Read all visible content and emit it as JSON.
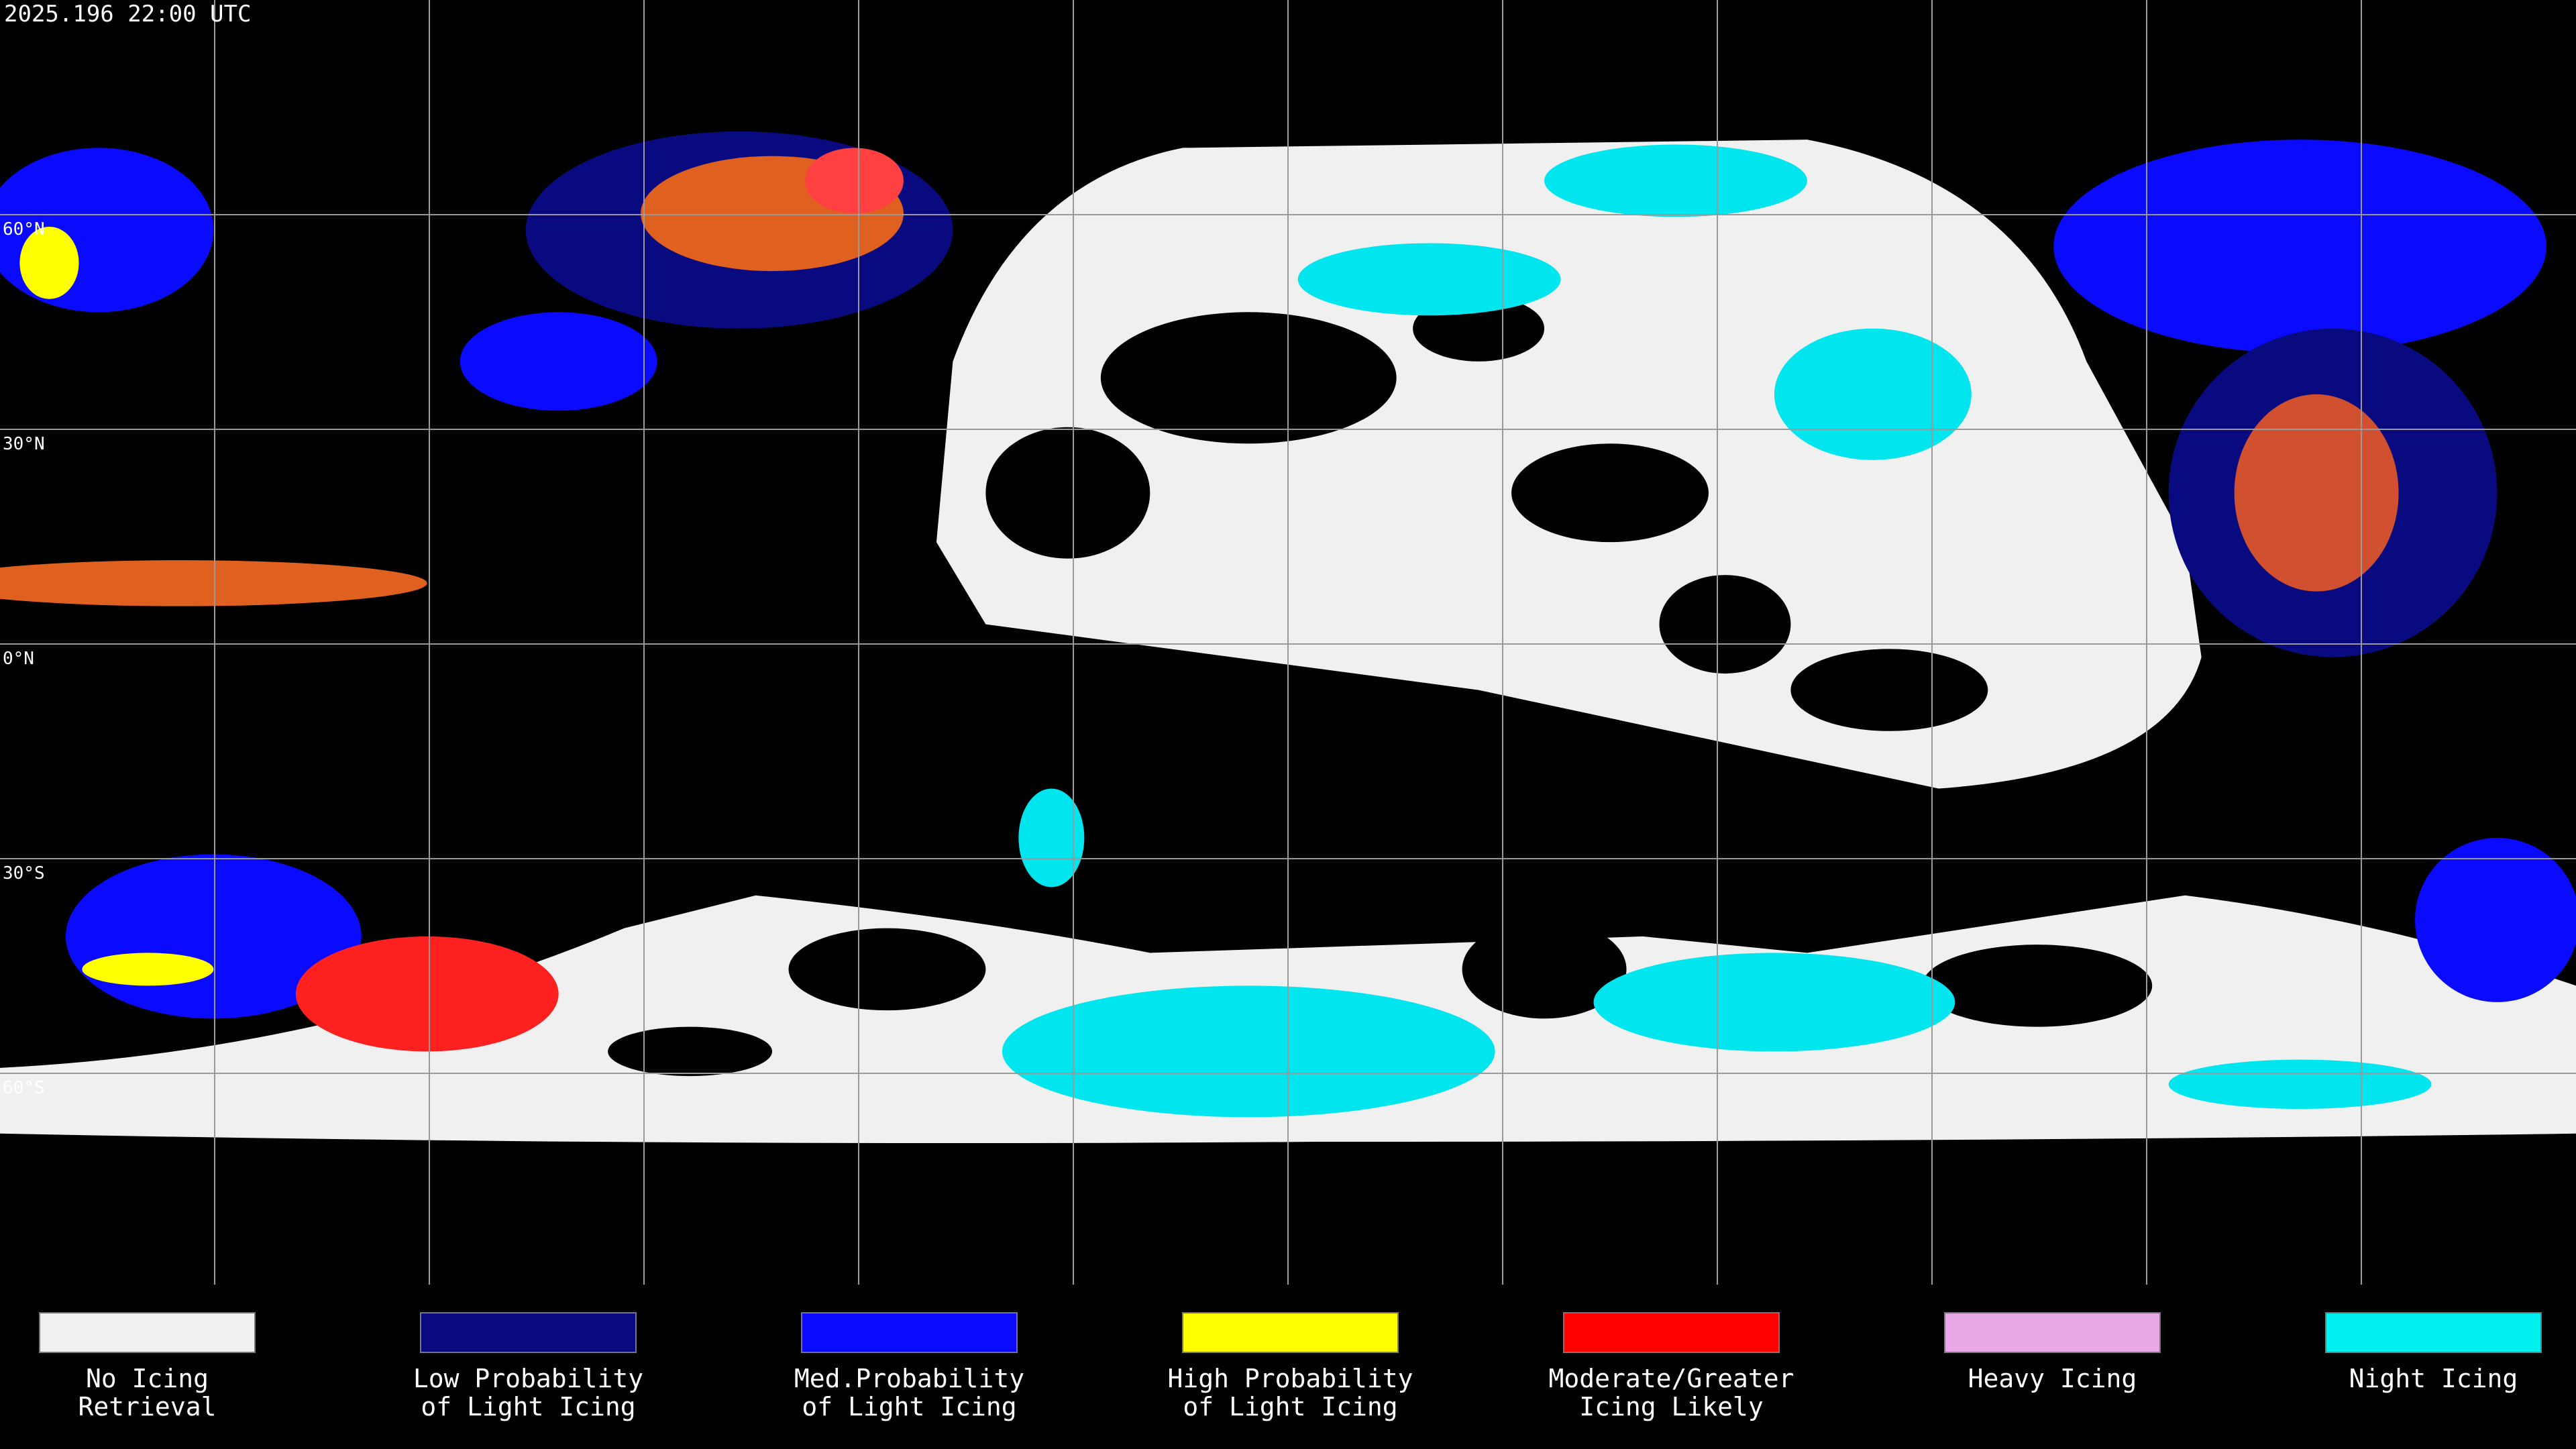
{
  "header": {
    "timestamp": "2025.196 22:00 UTC"
  },
  "map": {
    "latitude_labels": [
      "60°N",
      "30°N",
      "0°N",
      "30°S",
      "60°S"
    ]
  },
  "legend": [
    {
      "label_lines": [
        "No Icing",
        "Retrieval"
      ],
      "color": "#f0f0f0"
    },
    {
      "label_lines": [
        "Low Probability",
        "of Light Icing"
      ],
      "color": "#0a0a80"
    },
    {
      "label_lines": [
        "Med.Probability",
        "of Light Icing"
      ],
      "color": "#0a0aff"
    },
    {
      "label_lines": [
        "High Probability",
        "of Light Icing"
      ],
      "color": "#ffff00"
    },
    {
      "label_lines": [
        "Moderate/Greater",
        "Icing Likely"
      ],
      "color": "#ff0000"
    },
    {
      "label_lines": [
        "Heavy Icing"
      ],
      "color": "#e8a8e8"
    },
    {
      "label_lines": [
        "Night Icing"
      ],
      "color": "#00f0f0"
    }
  ]
}
